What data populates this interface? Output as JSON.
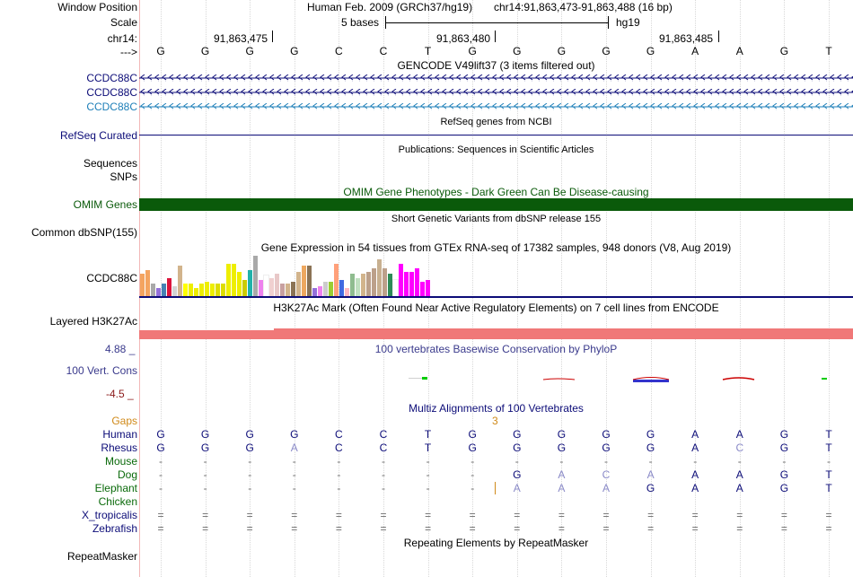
{
  "header": {
    "window_position_label": "Window Position",
    "assembly": "Human Feb. 2009 (GRCh37/hg19)",
    "position": "chr14:91,863,473-91,863,488 (16 bp)",
    "scale_label": "Scale",
    "scale_text": "5 bases",
    "scale_db": "hg19",
    "chrom_label": "chr14:",
    "ticks": [
      "91,863,475",
      "91,863,480",
      "91,863,485"
    ],
    "strand_label": "--->",
    "bases": [
      "G",
      "G",
      "G",
      "G",
      "C",
      "C",
      "T",
      "G",
      "G",
      "G",
      "G",
      "G",
      "A",
      "A",
      "G",
      "T"
    ]
  },
  "gencode": {
    "title": "GENCODE V49lift37 (3 items filtered out)",
    "items": [
      {
        "name": "CCDC88C",
        "color": "#0c0c78"
      },
      {
        "name": "CCDC88C",
        "color": "#0c0c78"
      },
      {
        "name": "CCDC88C",
        "color": "#1e7fb8"
      }
    ]
  },
  "refseq": {
    "title": "RefSeq genes from NCBI",
    "label": "RefSeq Curated"
  },
  "publications": {
    "title": "Publications: Sequences in Scientific Articles",
    "labels": [
      "Sequences",
      "SNPs"
    ]
  },
  "omim": {
    "title": "OMIM Gene Phenotypes - Dark Green Can Be Disease-causing",
    "label": "OMIM Genes",
    "color": "#0a5a0a"
  },
  "dbsnp": {
    "title": "Short Genetic Variants from dbSNP release 155",
    "label": "Common dbSNP(155)"
  },
  "gtex": {
    "title": "Gene Expression in 54 tissues from GTEx RNA-seq of 17382 samples, 948 donors (V8, Aug 2019)",
    "label": "CCDC88C",
    "chart_data": {
      "type": "bar",
      "title": "Gene Expression in 54 tissues from GTEx RNA-seq of 17382 samples, 948 donors (V8, Aug 2019)",
      "values": [
        0.55,
        0.65,
        0.3,
        0.2,
        0.3,
        0.45,
        0.25,
        0.75,
        0.3,
        0.3,
        0.2,
        0.3,
        0.35,
        0.3,
        0.3,
        0.3,
        0.8,
        0.8,
        0.6,
        0.4,
        0.65,
        1.0,
        0.4,
        0.5,
        0.45,
        0.55,
        0.3,
        0.3,
        0.35,
        0.6,
        0.75,
        0.75,
        0.2,
        0.25,
        0.35,
        0.35,
        0.8,
        0.4,
        0.2,
        0.55,
        0.45,
        0.55,
        0.6,
        0.7,
        0.9,
        0.7,
        0.55,
        0.4,
        0.8,
        0.6,
        0.6,
        0.7,
        0.35,
        0.4
      ],
      "colors": [
        "#f4a460",
        "#f4a460",
        "#a9a9a9",
        "#9370db",
        "#4682b4",
        "#dc143c",
        "#d3d3d3",
        "#d2b48c",
        "#ffff00",
        "#eeee00",
        "#eeee00",
        "#eeee00",
        "#eeee00",
        "#eeee00",
        "#dddd00",
        "#dddd00",
        "#eeee00",
        "#eeee00",
        "#eeee00",
        "#cccc00",
        "#20b2aa",
        "#a9a9a9",
        "#ee82ee",
        "#ffffff",
        "#f0d0d0",
        "#e8c8c8",
        "#c8a0a0",
        "#d2b48c",
        "#8b7355",
        "#d2b48c",
        "#eea860",
        "#8b7355",
        "#9370db",
        "#ee82ee",
        "#cccccc",
        "#9acd32",
        "#ffa07a",
        "#4169e1",
        "#ffb6c1",
        "#8fbc8f",
        "#c0e0c0",
        "#d2b48c",
        "#bca08a",
        "#bca08a",
        "#c8b090",
        "#bca08a",
        "#2e8b57",
        "#ffffff",
        "#ff00ff",
        "#ff00ff",
        "#ff00ff",
        "#ff00ff",
        "#ff00ff",
        "#ff00ff"
      ]
    }
  },
  "h3k27ac": {
    "title": "H3K27Ac Mark (Often Found Near Active Regulatory Elements) on 7 cell lines from ENCODE",
    "label": "Layered H3K27Ac"
  },
  "phylop": {
    "title": "100 vertebrates Basewise Conservation by PhyloP",
    "label": "100 Vert. Cons",
    "max": "4.88 _",
    "min": "-4.5 _"
  },
  "multiz": {
    "title": "Multiz Alignments of 100 Vertebrates",
    "gaps_label": "Gaps",
    "gap_count": "3",
    "species": [
      {
        "name": "Human",
        "bases": [
          "G",
          "G",
          "G",
          "G",
          "C",
          "C",
          "T",
          "G",
          "G",
          "G",
          "G",
          "G",
          "A",
          "A",
          "G",
          "T"
        ]
      },
      {
        "name": "Rhesus",
        "bases": [
          "G",
          "G",
          "G",
          "A",
          "C",
          "C",
          "T",
          "G",
          "G",
          "G",
          "G",
          "G",
          "A",
          "C",
          "G",
          "T"
        ]
      },
      {
        "name": "Mouse",
        "bases": [
          "-",
          "-",
          "-",
          "-",
          "-",
          "-",
          "-",
          "-",
          "-",
          "-",
          "-",
          "-",
          "-",
          "-",
          "-",
          "-"
        ]
      },
      {
        "name": "Dog",
        "bases": [
          "-",
          "-",
          "-",
          "-",
          "-",
          "-",
          "-",
          "-",
          "G",
          "A",
          "C",
          "A",
          "A",
          "A",
          "G",
          "T"
        ]
      },
      {
        "name": "Elephant",
        "bases": [
          "-",
          "-",
          "-",
          "-",
          "-",
          "-",
          "-",
          "-",
          "A",
          "A",
          "A",
          "G",
          "A",
          "A",
          "G",
          "T"
        ]
      },
      {
        "name": "Chicken",
        "bases": [
          "",
          "",
          "",
          "",
          "",
          "",
          "",
          "",
          "",
          "",
          "",
          "",
          "",
          "",
          "",
          ""
        ]
      },
      {
        "name": "X_tropicalis",
        "bases": [
          "=",
          "=",
          "=",
          "=",
          "=",
          "=",
          "=",
          "=",
          "=",
          "=",
          "=",
          "=",
          "=",
          "=",
          "=",
          "="
        ]
      },
      {
        "name": "Zebrafish",
        "bases": [
          "=",
          "=",
          "=",
          "=",
          "=",
          "=",
          "=",
          "=",
          "=",
          "=",
          "=",
          "=",
          "=",
          "=",
          "=",
          "="
        ]
      }
    ]
  },
  "repeatmasker": {
    "title": "Repeating Elements by RepeatMasker",
    "label": "RepeatMasker"
  }
}
